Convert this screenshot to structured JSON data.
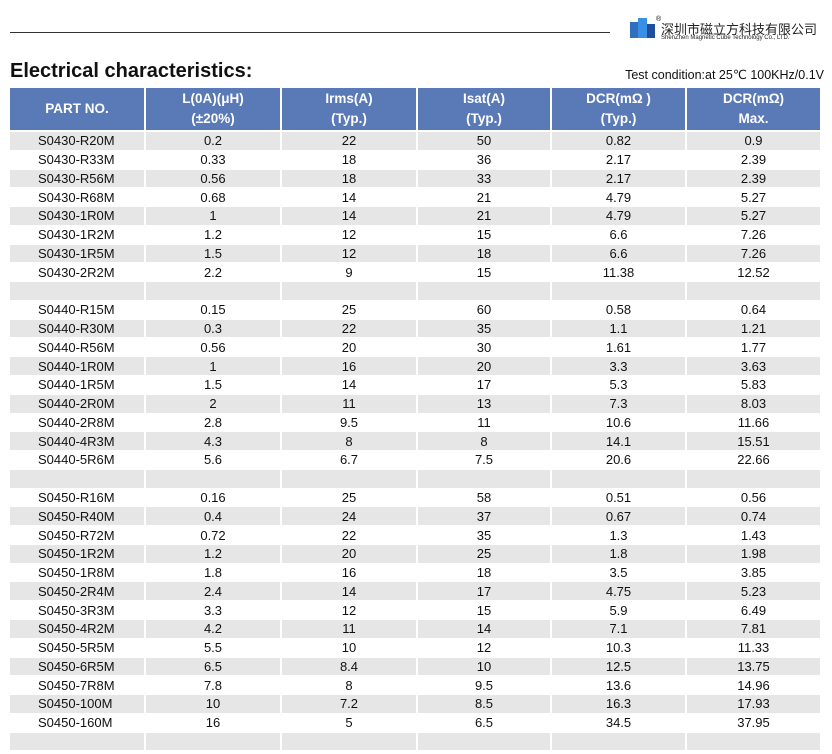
{
  "header": {
    "company_cn": "深圳市磁立方科技有限公司",
    "company_en": "ShenZhen Magnetic Cube Technology Co., LTD.",
    "mark": "®"
  },
  "title": "Electrical characteristics:",
  "test_condition": "Test condition:at 25℃ 100KHz/0.1V",
  "table": {
    "columns": [
      [
        "PART NO."
      ],
      [
        "L(0A)(μH)",
        "(±20%)"
      ],
      [
        "Irms(A)",
        "(Typ.)"
      ],
      [
        "Isat(A)",
        "(Typ.)"
      ],
      [
        "DCR(mΩ )",
        "(Typ.)"
      ],
      [
        "DCR(mΩ)",
        "Max."
      ]
    ],
    "groups": [
      {
        "rows": [
          [
            "S0430-R20M",
            "0.2",
            "22",
            "50",
            "0.82",
            "0.9"
          ],
          [
            "S0430-R33M",
            "0.33",
            "18",
            "36",
            "2.17",
            "2.39"
          ],
          [
            "S0430-R56M",
            "0.56",
            "18",
            "33",
            "2.17",
            "2.39"
          ],
          [
            "S0430-R68M",
            "0.68",
            "14",
            "21",
            "4.79",
            "5.27"
          ],
          [
            "S0430-1R0M",
            "1",
            "14",
            "21",
            "4.79",
            "5.27"
          ],
          [
            "S0430-1R2M",
            "1.2",
            "12",
            "15",
            "6.6",
            "7.26"
          ],
          [
            "S0430-1R5M",
            "1.5",
            "12",
            "18",
            "6.6",
            "7.26"
          ],
          [
            "S0430-2R2M",
            "2.2",
            "9",
            "15",
            "11.38",
            "12.52"
          ]
        ]
      },
      {
        "rows": [
          [
            "S0440-R15M",
            "0.15",
            "25",
            "60",
            "0.58",
            "0.64"
          ],
          [
            "S0440-R30M",
            "0.3",
            "22",
            "35",
            "1.1",
            "1.21"
          ],
          [
            "S0440-R56M",
            "0.56",
            "20",
            "30",
            "1.61",
            "1.77"
          ],
          [
            "S0440-1R0M",
            "1",
            "16",
            "20",
            "3.3",
            "3.63"
          ],
          [
            "S0440-1R5M",
            "1.5",
            "14",
            "17",
            "5.3",
            "5.83"
          ],
          [
            "S0440-2R0M",
            "2",
            "11",
            "13",
            "7.3",
            "8.03"
          ],
          [
            "S0440-2R8M",
            "2.8",
            "9.5",
            "11",
            "10.6",
            "11.66"
          ],
          [
            "S0440-4R3M",
            "4.3",
            "8",
            "8",
            "14.1",
            "15.51"
          ],
          [
            "S0440-5R6M",
            "5.6",
            "6.7",
            "7.5",
            "20.6",
            "22.66"
          ]
        ]
      },
      {
        "rows": [
          [
            "S0450-R16M",
            "0.16",
            "25",
            "58",
            "0.51",
            "0.56"
          ],
          [
            "S0450-R40M",
            "0.4",
            "24",
            "37",
            "0.67",
            "0.74"
          ],
          [
            "S0450-R72M",
            "0.72",
            "22",
            "35",
            "1.3",
            "1.43"
          ],
          [
            "S0450-1R2M",
            "1.2",
            "20",
            "25",
            "1.8",
            "1.98"
          ],
          [
            "S0450-1R8M",
            "1.8",
            "16",
            "18",
            "3.5",
            "3.85"
          ],
          [
            "S0450-2R4M",
            "2.4",
            "14",
            "17",
            "4.75",
            "5.23"
          ],
          [
            "S0450-3R3M",
            "3.3",
            "12",
            "15",
            "5.9",
            "6.49"
          ],
          [
            "S0450-4R2M",
            "4.2",
            "11",
            "14",
            "7.1",
            "7.81"
          ],
          [
            "S0450-5R5M",
            "5.5",
            "10",
            "12",
            "10.3",
            "11.33"
          ],
          [
            "S0450-6R5M",
            "6.5",
            "8.4",
            "10",
            "12.5",
            "13.75"
          ],
          [
            "S0450-7R8M",
            "7.8",
            "8",
            "9.5",
            "13.6",
            "14.96"
          ],
          [
            "S0450-100M",
            "10",
            "7.2",
            "8.5",
            "16.3",
            "17.93"
          ],
          [
            "S0450-160M",
            "16",
            "5",
            "6.5",
            "34.5",
            "37.95"
          ]
        ]
      }
    ]
  }
}
